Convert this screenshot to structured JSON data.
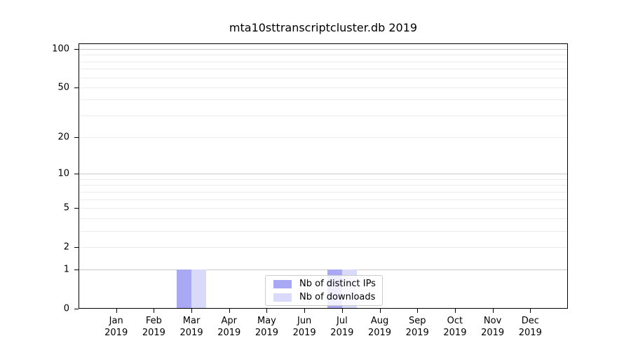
{
  "title": "mta10sttranscriptcluster.db 2019",
  "legend": {
    "items": [
      {
        "label": "Nb of distinct IPs",
        "color": "#a8a8f4"
      },
      {
        "label": "Nb of downloads",
        "color": "#d9d9f9"
      }
    ]
  },
  "colors": {
    "background": "#ffffff",
    "spine": "#000000",
    "grid_major": "#c9c9c9",
    "grid_minor": "#ececec"
  },
  "chart_data": {
    "type": "bar",
    "title": "mta10sttranscriptcluster.db 2019",
    "xlabel": "",
    "ylabel": "",
    "categories": [
      "Jan",
      "Feb",
      "Mar",
      "Apr",
      "May",
      "Jun",
      "Jul",
      "Aug",
      "Sep",
      "Oct",
      "Nov",
      "Dec"
    ],
    "x_year_suffix": "2019",
    "series": [
      {
        "name": "Nb of distinct IPs",
        "color": "#a8a8f4",
        "values": [
          0,
          0,
          1,
          0,
          0,
          0,
          1,
          0,
          0,
          0,
          0,
          0
        ]
      },
      {
        "name": "Nb of downloads",
        "color": "#d9d9f9",
        "values": [
          0,
          0,
          1,
          0,
          0,
          0,
          1,
          0,
          0,
          0,
          0,
          0
        ]
      }
    ],
    "yscale": "log1p",
    "ylim": [
      0,
      110
    ],
    "yticks": [
      0,
      1,
      2,
      5,
      10,
      20,
      50,
      100
    ],
    "ytick_labels": [
      "0",
      "1",
      "2",
      "5",
      "10",
      "20",
      "50",
      "100"
    ],
    "major_gridlines": [
      1,
      10,
      100
    ],
    "minor_gridlines": [
      2,
      3,
      4,
      5,
      6,
      7,
      8,
      9,
      20,
      30,
      40,
      50,
      60,
      70,
      80,
      90
    ],
    "grid": "on",
    "legend_position": "lower center"
  }
}
